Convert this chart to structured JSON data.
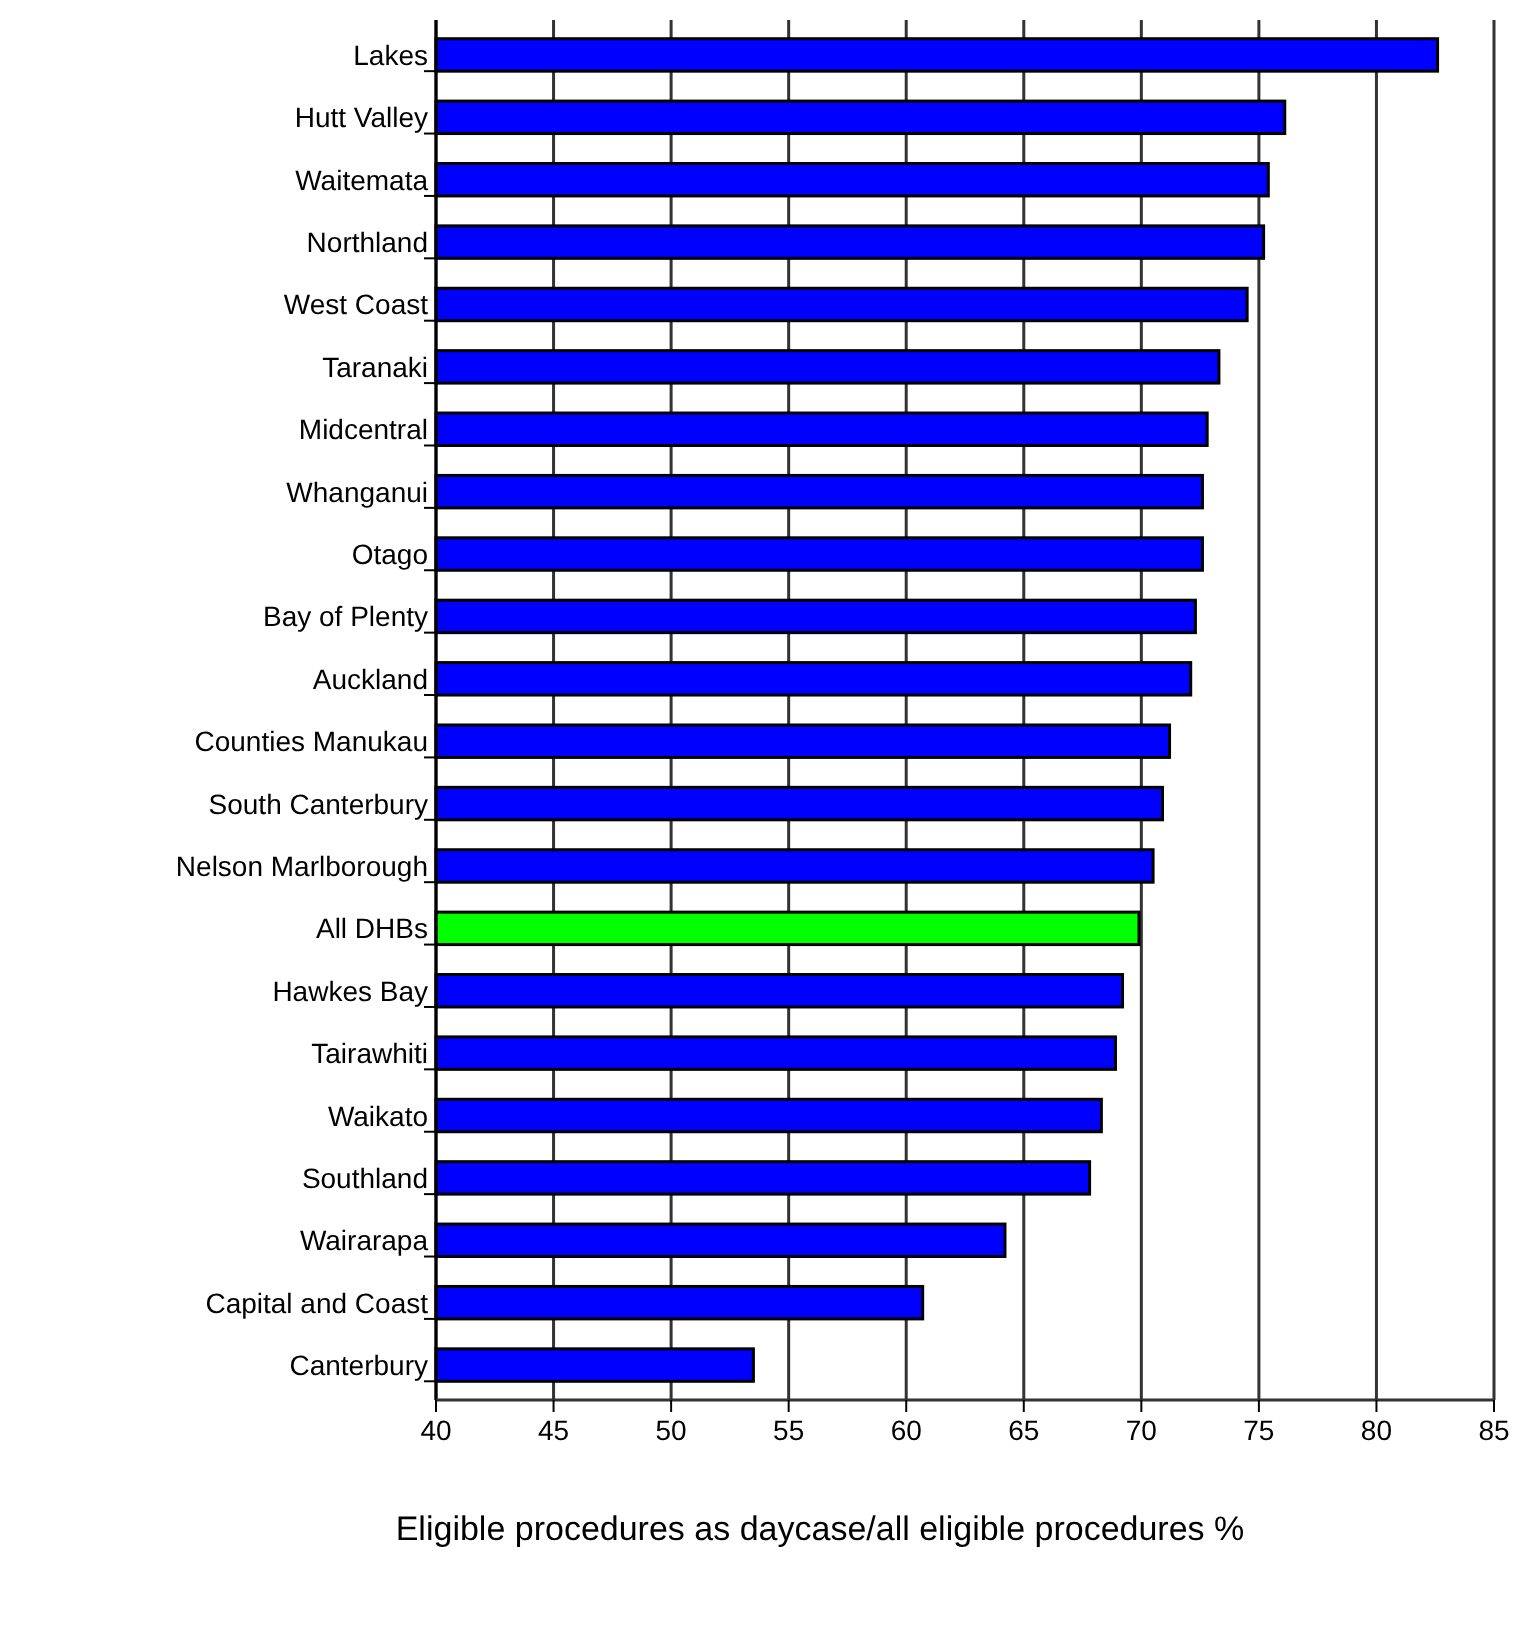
{
  "chart_data": {
    "type": "bar",
    "orientation": "horizontal",
    "xlabel": "Eligible procedures as daycase/all eligible procedures %",
    "categories": [
      "Lakes",
      "Hutt Valley",
      "Waitemata",
      "Northland",
      "West Coast",
      "Taranaki",
      "Midcentral",
      "Whanganui",
      "Otago",
      "Bay of Plenty",
      "Auckland",
      "Counties Manukau",
      "South Canterbury",
      "Nelson Marlborough",
      "All DHBs",
      "Hawkes Bay",
      "Tairawhiti",
      "Waikato",
      "Southland",
      "Wairarapa",
      "Capital and Coast",
      "Canterbury"
    ],
    "values": [
      82.6,
      76.1,
      75.4,
      75.2,
      74.5,
      73.3,
      72.8,
      72.6,
      72.6,
      72.3,
      72.1,
      71.2,
      70.9,
      70.5,
      69.9,
      69.2,
      68.9,
      68.3,
      67.8,
      64.2,
      60.7,
      53.5
    ],
    "colors": [
      "#0000ff",
      "#0000ff",
      "#0000ff",
      "#0000ff",
      "#0000ff",
      "#0000ff",
      "#0000ff",
      "#0000ff",
      "#0000ff",
      "#0000ff",
      "#0000ff",
      "#0000ff",
      "#0000ff",
      "#0000ff",
      "#00ff00",
      "#0000ff",
      "#0000ff",
      "#0000ff",
      "#0000ff",
      "#0000ff",
      "#0000ff",
      "#0000ff"
    ],
    "xlim": [
      40,
      85
    ],
    "xticks": [
      40,
      45,
      50,
      55,
      60,
      65,
      70,
      75,
      80,
      85
    ],
    "grid": "x"
  }
}
